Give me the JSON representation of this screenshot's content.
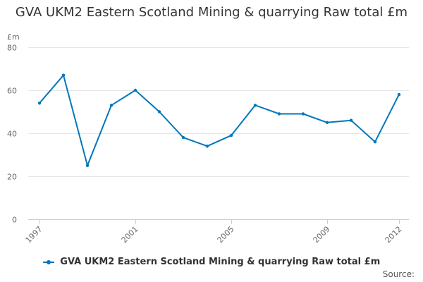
{
  "chart_data": {
    "type": "line",
    "title": "GVA UKM2 Eastern Scotland Mining & quarrying Raw total £m",
    "ylabel": "£m",
    "xlabel": "",
    "x": [
      1997,
      1998,
      1999,
      2000,
      2001,
      2002,
      2003,
      2004,
      2005,
      2006,
      2007,
      2008,
      2009,
      2010,
      2011,
      2012
    ],
    "x_tick_labels": [
      "1997",
      "2001",
      "2005",
      "2009",
      "2012"
    ],
    "ylim": [
      0,
      80
    ],
    "y_ticks": [
      0,
      20,
      40,
      60,
      80
    ],
    "grid": true,
    "legend_position": "bottom",
    "series": [
      {
        "name": "GVA UKM2 Eastern Scotland Mining & quarrying Raw total £m",
        "color": "#0077bb",
        "values": [
          54,
          67,
          25,
          53,
          60,
          50,
          38,
          34,
          39,
          53,
          49,
          49,
          45,
          46,
          36,
          58
        ]
      }
    ]
  },
  "source_label": "Source:"
}
